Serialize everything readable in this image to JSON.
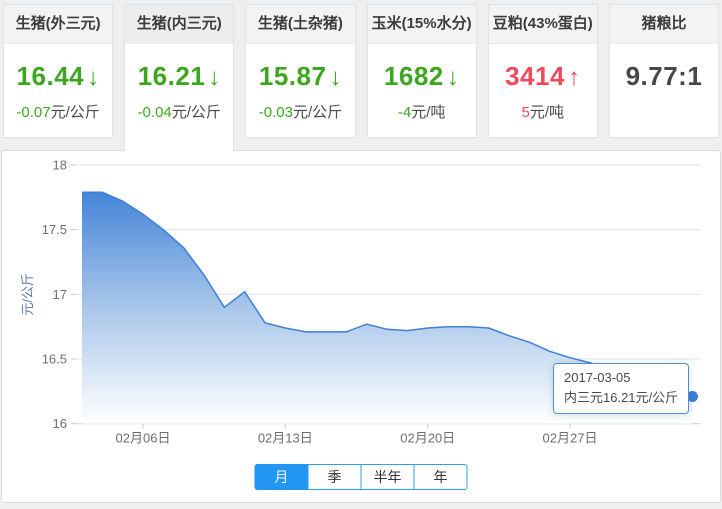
{
  "colors": {
    "green": "#3aa71c",
    "red": "#f24a5a",
    "accent_blue": "#2196f3"
  },
  "cards": [
    {
      "label": "生猪(外三元)",
      "value": "16.44",
      "arrow": "↓",
      "direction": "down",
      "change": "-0.07",
      "unit": "元/公斤",
      "selected": false
    },
    {
      "label": "生猪(内三元)",
      "value": "16.21",
      "arrow": "↓",
      "direction": "down",
      "change": "-0.04",
      "unit": "元/公斤",
      "selected": true
    },
    {
      "label": "生猪(土杂猪)",
      "value": "15.87",
      "arrow": "↓",
      "direction": "down",
      "change": "-0.03",
      "unit": "元/公斤",
      "selected": false
    },
    {
      "label": "玉米(15%水分)",
      "value": "1682",
      "arrow": "↓",
      "direction": "down",
      "change": "-4",
      "unit": "元/吨",
      "selected": false
    },
    {
      "label": "豆粕(43%蛋白)",
      "value": "3414",
      "arrow": "↑",
      "direction": "up",
      "change": "5",
      "unit": "元/吨",
      "selected": false
    },
    {
      "label": "猪粮比",
      "value": "9.77:1",
      "arrow": "",
      "direction": "none",
      "change": "",
      "unit": "",
      "selected": false
    }
  ],
  "chart_data": {
    "type": "area",
    "series_name": "内三元",
    "title": "",
    "ylabel": "元/公斤",
    "ylim": [
      16,
      18
    ],
    "yticks": [
      16,
      16.5,
      17,
      17.5,
      18
    ],
    "x": [
      "02-03",
      "02-04",
      "02-05",
      "02-06",
      "02-07",
      "02-08",
      "02-09",
      "02-10",
      "02-11",
      "02-12",
      "02-13",
      "02-14",
      "02-15",
      "02-16",
      "02-17",
      "02-18",
      "02-19",
      "02-20",
      "02-21",
      "02-22",
      "02-23",
      "02-24",
      "02-25",
      "02-26",
      "02-27",
      "02-28",
      "03-01",
      "03-02",
      "03-03",
      "03-04",
      "03-05"
    ],
    "values": [
      17.79,
      17.79,
      17.72,
      17.62,
      17.5,
      17.36,
      17.15,
      16.9,
      17.02,
      16.78,
      16.74,
      16.71,
      16.71,
      16.71,
      16.77,
      16.73,
      16.72,
      16.74,
      16.75,
      16.75,
      16.74,
      16.68,
      16.63,
      16.56,
      16.51,
      16.47,
      16.42,
      16.37,
      16.31,
      16.26,
      16.21
    ],
    "xticks": [
      {
        "index": 3,
        "label": "02月06日"
      },
      {
        "index": 10,
        "label": "02月13日"
      },
      {
        "index": 17,
        "label": "02月20日"
      },
      {
        "index": 24,
        "label": "02月27日"
      }
    ],
    "grid": true,
    "legend": "none",
    "tooltip": {
      "date": "2017-03-05",
      "text": "内三元16.21元/公斤"
    },
    "colors": {
      "line": "#3f7fd4",
      "fill_top": "#4585d9",
      "fill_mid": "#a9c6ea",
      "fill_bottom": "#feffff",
      "dot": "#3e80d8",
      "axis_text": "#6e6e6e",
      "ylabel_text": "#5b7aa9",
      "gridline": "#e2e2e2",
      "axisline": "#ccd0d4"
    }
  },
  "tabs": {
    "items": [
      "月",
      "季",
      "半年",
      "年"
    ],
    "active_index": 0
  }
}
